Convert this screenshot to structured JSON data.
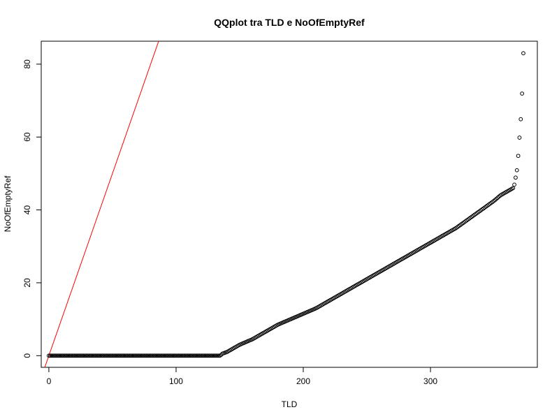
{
  "chart_data": {
    "type": "scatter",
    "title": "QQplot tra TLD e NoOfEmptyRef",
    "xlabel": "TLD",
    "ylabel": "NoOfEmptyRef",
    "xlim": [
      -6,
      384
    ],
    "ylim": [
      -3.2,
      86.3
    ],
    "x_ticks": [
      0,
      100,
      200,
      300
    ],
    "y_ticks": [
      0,
      20,
      40,
      60,
      80
    ],
    "x_tick_labels": [
      "0",
      "100",
      "200",
      "300"
    ],
    "y_tick_labels": [
      "0",
      "20",
      "40",
      "60",
      "80"
    ],
    "grid": false,
    "legend": "none",
    "point_color": "#000000",
    "reference_line": {
      "intercept": 0,
      "slope": 1,
      "color": "#ff0000"
    },
    "n_points": 370,
    "quantile_pairs": [
      [
        0,
        0
      ],
      [
        135,
        0
      ],
      [
        136,
        0.5
      ],
      [
        140,
        1
      ],
      [
        145,
        2
      ],
      [
        150,
        3
      ],
      [
        160,
        4.5
      ],
      [
        170,
        6.5
      ],
      [
        180,
        8.5
      ],
      [
        190,
        10
      ],
      [
        200,
        11.5
      ],
      [
        210,
        13
      ],
      [
        220,
        15
      ],
      [
        230,
        17
      ],
      [
        240,
        19
      ],
      [
        250,
        21
      ],
      [
        260,
        23
      ],
      [
        270,
        25
      ],
      [
        280,
        27
      ],
      [
        290,
        29
      ],
      [
        300,
        31
      ],
      [
        310,
        33
      ],
      [
        320,
        35
      ],
      [
        330,
        37.5
      ],
      [
        340,
        40
      ],
      [
        350,
        42.5
      ],
      [
        355,
        44
      ],
      [
        360,
        45
      ],
      [
        365,
        46
      ],
      [
        366,
        47
      ],
      [
        367,
        49
      ],
      [
        368,
        51
      ],
      [
        369,
        55
      ],
      [
        370,
        60
      ],
      [
        371,
        65
      ],
      [
        372,
        72
      ],
      [
        372.5,
        76
      ],
      [
        373,
        83
      ]
    ]
  }
}
